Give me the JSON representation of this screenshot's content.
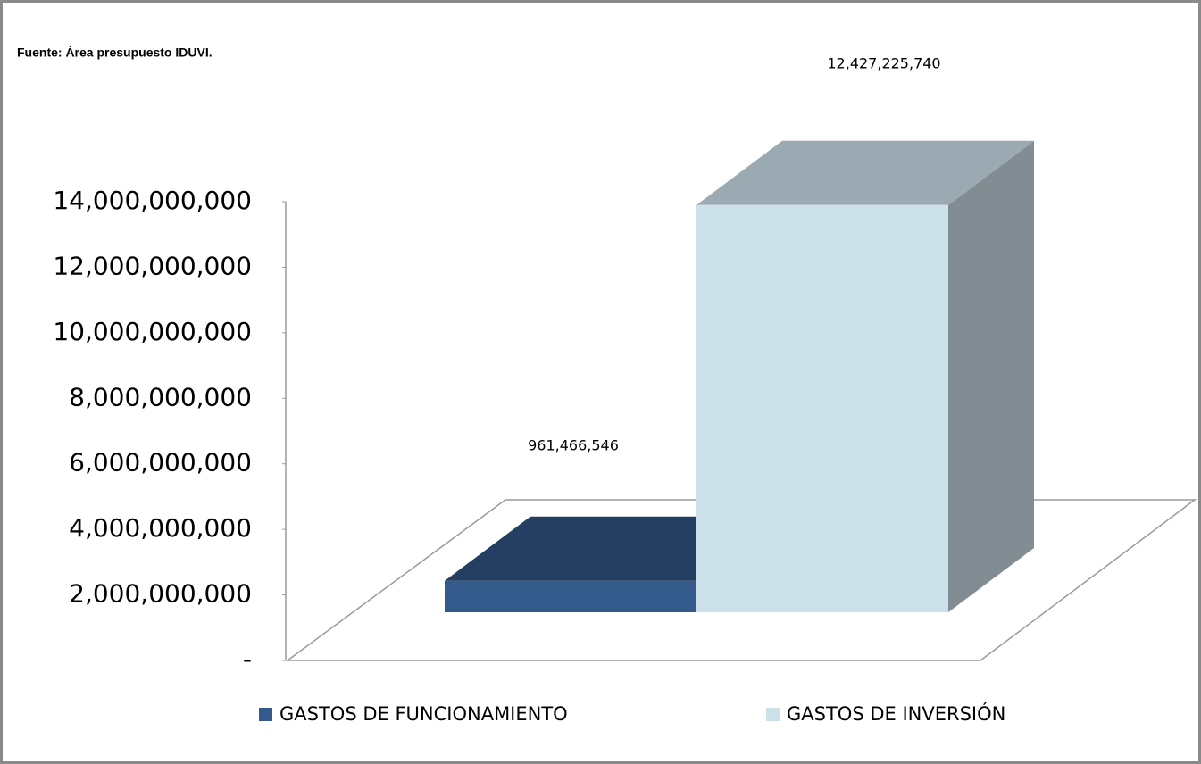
{
  "chart_data": {
    "type": "bar3d",
    "subtitle": "Fuente: Área presupuesto IDUVI.",
    "series": [
      {
        "name": "GASTOS DE FUNCIONAMIENTO",
        "color": "#335a8a",
        "values": [
          961466546
        ],
        "value_labels": [
          "961,466,546"
        ]
      },
      {
        "name": "GASTOS DE INVERSIÓN",
        "color": "#cce0ea",
        "values": [
          12427225740
        ],
        "value_labels": [
          "12,427,225,740"
        ]
      }
    ],
    "ylim": [
      0,
      14000000000
    ],
    "yticks": [
      {
        "value": 0,
        "label": "-"
      },
      {
        "value": 2000000000,
        "label": "2,000,000,000"
      },
      {
        "value": 4000000000,
        "label": "4,000,000,000"
      },
      {
        "value": 6000000000,
        "label": "6,000,000,000"
      },
      {
        "value": 8000000000,
        "label": "8,000,000,000"
      },
      {
        "value": 10000000000,
        "label": "10,000,000,000"
      },
      {
        "value": 12000000000,
        "label": "12,000,000,000"
      },
      {
        "value": 14000000000,
        "label": "14,000,000,000"
      }
    ],
    "legend": "bottom"
  }
}
